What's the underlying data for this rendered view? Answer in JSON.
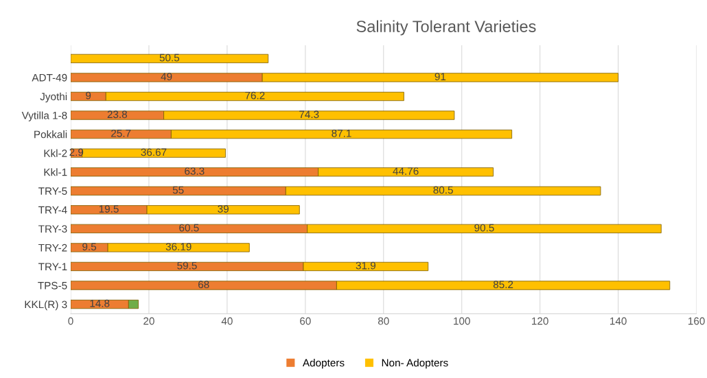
{
  "chart_data": {
    "type": "bar",
    "orientation": "horizontal",
    "stacked": true,
    "title": "Salinity Tolerant Varieties",
    "categories": [
      null,
      "ADT-49",
      "Jyothi",
      "Vytilla 1-8",
      "Pokkali",
      "Kkl-2",
      "Kkl-1",
      "TRY-5",
      "TRY-4",
      "TRY-3",
      "TRY-2",
      "TRY-1",
      "TPS-5",
      "KKL(R) 3"
    ],
    "series": [
      {
        "name": "Adopters",
        "color": "#ed7d31",
        "values": [
          null,
          49,
          9,
          23.8,
          25.7,
          2.9,
          63.3,
          55,
          19.5,
          60.5,
          9.5,
          59.5,
          68,
          14.8
        ],
        "value_labels": [
          null,
          "49",
          "9",
          "23.8",
          "25.7",
          "2.9",
          "63.3",
          "55",
          "19.5",
          "60.5",
          "9.5",
          "59.5",
          "68",
          "14.8"
        ]
      },
      {
        "name": "Non- Adopters",
        "color": "#ffc000",
        "values": [
          50.5,
          91,
          76.2,
          74.3,
          87.1,
          36.67,
          44.76,
          80.5,
          39,
          90.5,
          36.19,
          31.9,
          85.2,
          null
        ],
        "value_labels": [
          "50.5",
          "91",
          "76.2",
          "74.3",
          "87.1",
          "36.67",
          "44.76",
          "80.5",
          "39",
          "90.5",
          "36.19",
          "31.9",
          "85.2",
          null
        ]
      },
      {
        "color": "#70ad47",
        "values": [
          null,
          null,
          null,
          null,
          null,
          null,
          null,
          null,
          null,
          null,
          null,
          null,
          null,
          2.5
        ]
      }
    ],
    "xlim": [
      0,
      160
    ],
    "xticks": [
      0,
      20,
      40,
      60,
      80,
      100,
      120,
      140,
      160
    ],
    "grid": "x",
    "legend": "bottom"
  }
}
